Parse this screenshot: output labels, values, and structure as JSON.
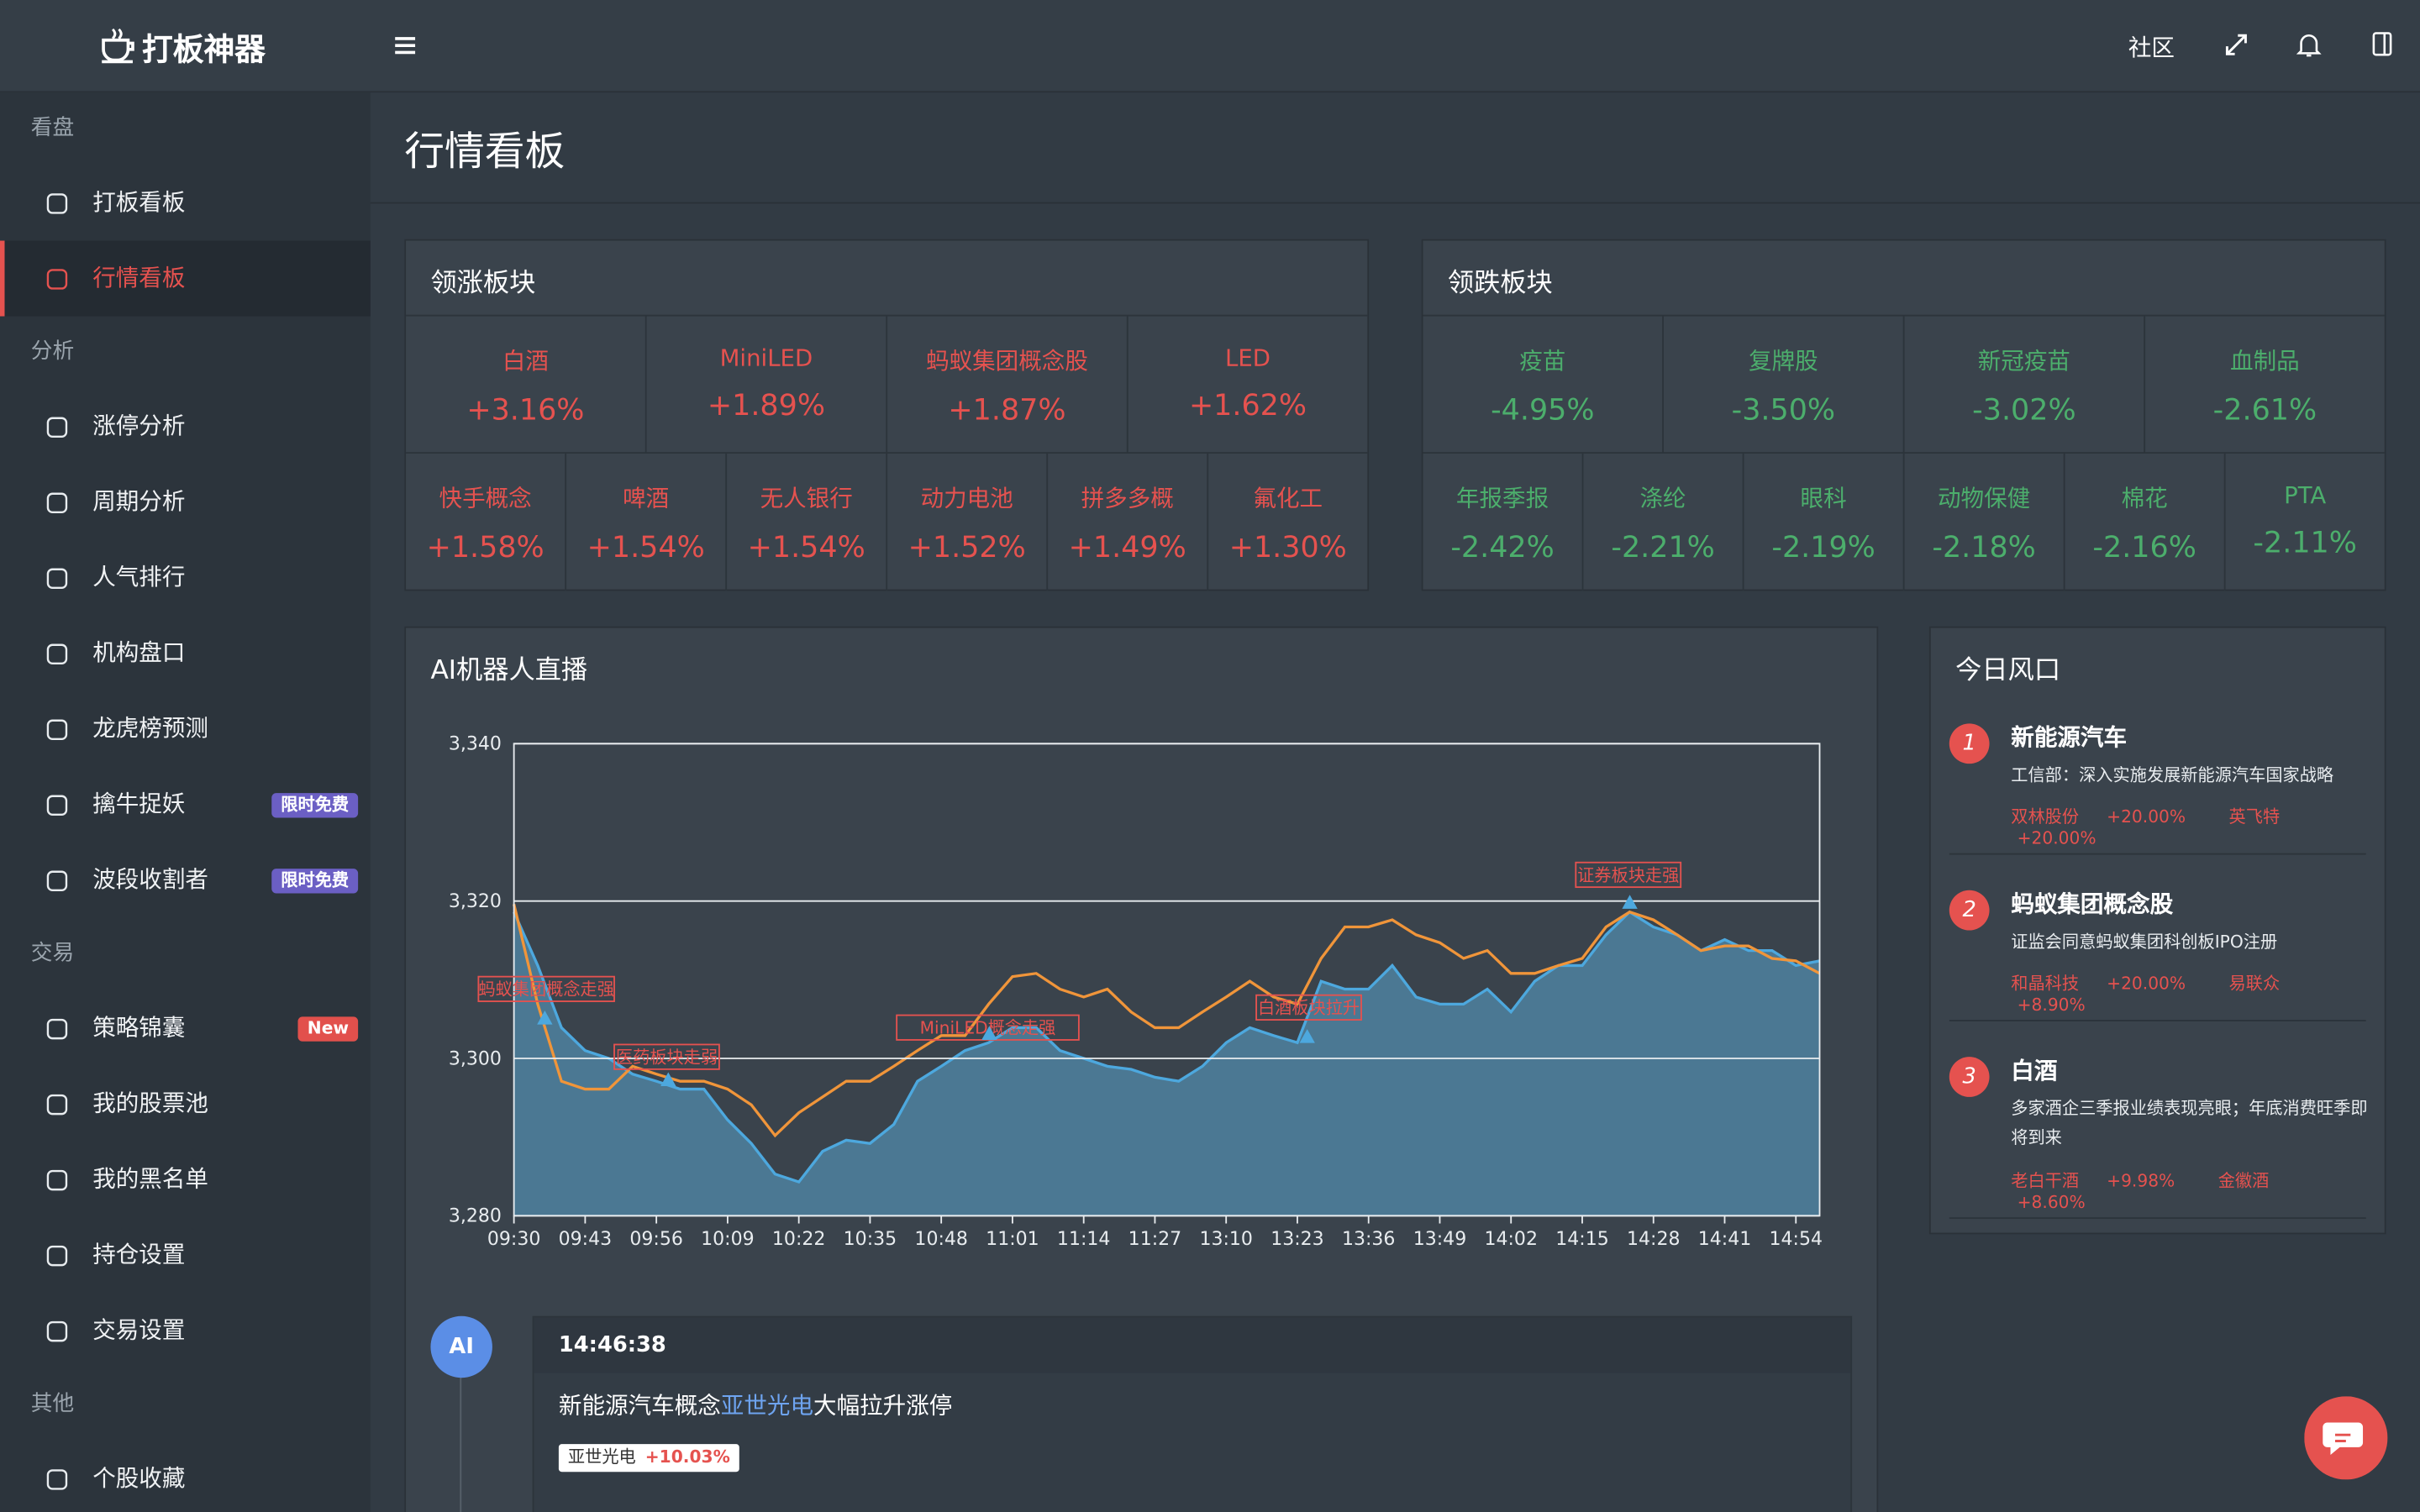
{
  "header": {
    "logo": "打板神器",
    "community": "社区"
  },
  "sidebar": {
    "sections": [
      {
        "title": "看盘",
        "items": [
          {
            "label": "打板看板"
          },
          {
            "label": "行情看板",
            "active": true
          }
        ]
      },
      {
        "title": "分析",
        "items": [
          {
            "label": "涨停分析"
          },
          {
            "label": "周期分析"
          },
          {
            "label": "人气排行"
          },
          {
            "label": "机构盘口"
          },
          {
            "label": "龙虎榜预测"
          },
          {
            "label": "擒牛捉妖",
            "badge": {
              "text": "限时免费",
              "color": "#6b5fc4"
            }
          },
          {
            "label": "波段收割者",
            "badge": {
              "text": "限时免费",
              "color": "#6b5fc4"
            }
          }
        ]
      },
      {
        "title": "交易",
        "items": [
          {
            "label": "策略锦囊",
            "badge": {
              "text": "New",
              "color": "#e2504c"
            }
          },
          {
            "label": "我的股票池"
          },
          {
            "label": "我的黑名单"
          },
          {
            "label": "持仓设置"
          },
          {
            "label": "交易设置"
          }
        ]
      },
      {
        "title": "其他",
        "items": [
          {
            "label": "个股收藏"
          }
        ]
      }
    ]
  },
  "page_title": "行情看板",
  "gainers": {
    "title": "领涨板块",
    "color": "#e5524f",
    "rows": [
      [
        {
          "name": "白酒",
          "change": "+3.16%"
        },
        {
          "name": "MiniLED",
          "change": "+1.89%"
        },
        {
          "name": "蚂蚁集团概念股",
          "change": "+1.87%"
        },
        {
          "name": "LED",
          "change": "+1.62%"
        }
      ],
      [
        {
          "name": "快手概念",
          "change": "+1.58%"
        },
        {
          "name": "啤酒",
          "change": "+1.54%"
        },
        {
          "name": "无人银行",
          "change": "+1.54%"
        },
        {
          "name": "动力电池",
          "change": "+1.52%"
        },
        {
          "name": "拼多多概",
          "change": "+1.49%"
        },
        {
          "name": "氟化工",
          "change": "+1.30%"
        }
      ]
    ]
  },
  "losers": {
    "title": "领跌板块",
    "color": "#4cae6c",
    "rows": [
      [
        {
          "name": "疫苗",
          "change": "-4.95%"
        },
        {
          "name": "复牌股",
          "change": "-3.50%"
        },
        {
          "name": "新冠疫苗",
          "change": "-3.02%"
        },
        {
          "name": "血制品",
          "change": "-2.61%"
        }
      ],
      [
        {
          "name": "年报季报",
          "change": "-2.42%"
        },
        {
          "name": "涤纶",
          "change": "-2.21%"
        },
        {
          "name": "眼科",
          "change": "-2.19%"
        },
        {
          "name": "动物保健",
          "change": "-2.18%"
        },
        {
          "name": "棉花",
          "change": "-2.16%"
        },
        {
          "name": "PTA",
          "change": "-2.11%"
        }
      ]
    ]
  },
  "chart_data": {
    "type": "line",
    "title": "AI机器人直播",
    "categories": [
      "09:30",
      null,
      null,
      "09:43",
      null,
      null,
      "09:56",
      null,
      null,
      "10:09",
      null,
      null,
      "10:22",
      null,
      null,
      "10:35",
      null,
      null,
      "10:48",
      null,
      null,
      "11:01",
      null,
      null,
      "11:14",
      null,
      null,
      "11:27",
      null,
      null,
      "13:10",
      null,
      null,
      "13:23",
      null,
      null,
      "13:36",
      null,
      null,
      "13:49",
      null,
      null,
      "14:02",
      null,
      null,
      "14:15",
      null,
      null,
      "14:28",
      null,
      null,
      "14:41",
      null,
      null,
      "14:54",
      null
    ],
    "series": [
      {
        "color": "#4da8de",
        "area": "#4b7893",
        "values": [
          3318.6,
          3311.8,
          3303.9,
          3301.0,
          3300.0,
          3298.0,
          3297.1,
          3296.1,
          3296.1,
          3292.2,
          3289.2,
          3285.3,
          3284.3,
          3288.2,
          3289.6,
          3289.2,
          3291.6,
          3297.1,
          3299.0,
          3301.0,
          3302.0,
          3303.9,
          3303.9,
          3301.0,
          3300.0,
          3299.0,
          3298.6,
          3297.6,
          3297.1,
          3299.0,
          3302.0,
          3303.9,
          3302.9,
          3302.0,
          3309.8,
          3308.8,
          3308.8,
          3311.8,
          3307.8,
          3306.9,
          3306.9,
          3308.8,
          3305.9,
          3309.8,
          3311.8,
          3311.8,
          3315.7,
          3318.6,
          3316.7,
          3315.7,
          3313.7,
          3315.1,
          3313.7,
          3313.7,
          3311.8,
          3312.4
        ]
      },
      {
        "color": "#f0953a",
        "values": [
          3319.6,
          3306.9,
          3297.1,
          3296.1,
          3296.1,
          3299.0,
          3298.0,
          3297.1,
          3297.1,
          3296.1,
          3294.1,
          3290.2,
          3293.1,
          3295.1,
          3297.1,
          3297.1,
          3299.0,
          3301.0,
          3302.9,
          3302.9,
          3306.9,
          3310.4,
          3310.8,
          3308.8,
          3307.8,
          3308.8,
          3305.9,
          3303.9,
          3303.9,
          3305.9,
          3307.8,
          3309.8,
          3307.8,
          3306.9,
          3312.7,
          3316.7,
          3316.7,
          3317.6,
          3315.7,
          3314.7,
          3312.7,
          3313.7,
          3310.8,
          3310.8,
          3311.8,
          3312.7,
          3316.7,
          3318.6,
          3317.6,
          3315.7,
          3313.7,
          3314.3,
          3314.3,
          3312.7,
          3312.4,
          3310.8
        ]
      }
    ],
    "ylim": [
      3280,
      3340
    ],
    "yticks": [
      {
        "value": 3280,
        "label": "3,280"
      },
      {
        "value": 3300,
        "label": "3,300"
      },
      {
        "value": 3320,
        "label": "3,320"
      },
      {
        "value": 3340,
        "label": "3,340"
      }
    ],
    "grid": true,
    "annotations": [
      "蚂蚁集团概念走强",
      "医药板块走弱",
      "MiniLED概念走强",
      "白酒板块拉升",
      "证券板块走强"
    ]
  },
  "hot": {
    "title": "今日风口",
    "items": [
      {
        "rank": "1",
        "title": "新能源汽车",
        "desc": "工信部：深入实施发展新能源汽车国家战略",
        "stocks": [
          {
            "name": "双林股份",
            "change": "+20.00%"
          },
          {
            "name": "英飞特",
            "change": "+20.00%"
          }
        ]
      },
      {
        "rank": "2",
        "title": "蚂蚁集团概念股",
        "desc": "证监会同意蚂蚁集团科创板IPO注册",
        "stocks": [
          {
            "name": "和晶科技",
            "change": "+20.00%"
          },
          {
            "name": "易联众",
            "change": "+8.90%"
          }
        ]
      },
      {
        "rank": "3",
        "title": "白酒",
        "desc": "多家酒企三季报业绩表现亮眼；年底消费旺季即将到来",
        "stocks": [
          {
            "name": "老白干酒",
            "change": "+9.98%"
          },
          {
            "name": "金徽酒",
            "change": "+8.60%"
          }
        ]
      }
    ]
  },
  "feed": {
    "avatar": "AI",
    "time": "14:46:38",
    "message": [
      "新能源汽车概念",
      "亚世光电",
      "大幅拉升涨停"
    ],
    "tag": {
      "name": "亚世光电",
      "change": "+10.03%"
    }
  }
}
